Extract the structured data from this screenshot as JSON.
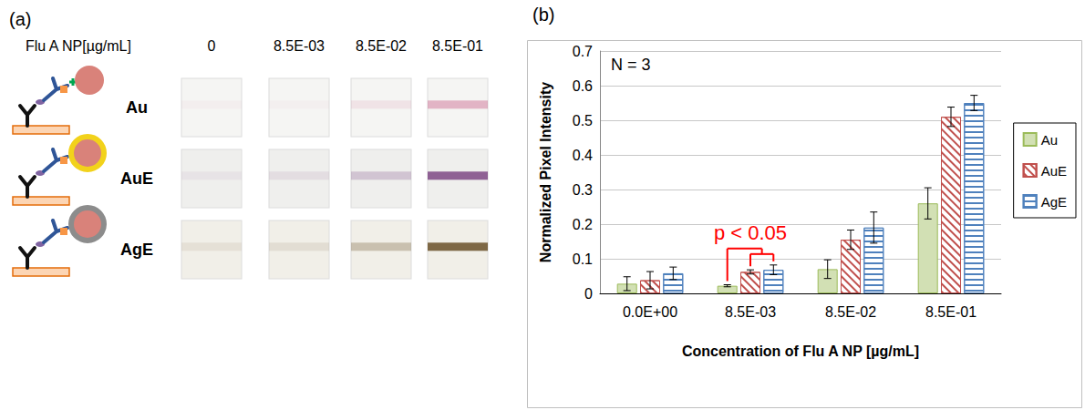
{
  "panel_a": {
    "letter": "(a)",
    "header": "Flu A NP[µg/mL]",
    "columns": [
      "0",
      "8.5E-03",
      "8.5E-02",
      "8.5E-01"
    ],
    "rows": [
      "Au",
      "AuE",
      "AgE"
    ]
  },
  "chart_data": {
    "letter": "(b)",
    "type": "bar",
    "x_label": "Concentration of Flu A NP [µg/mL]",
    "y_label": "Normalized Pixel Intensity",
    "categories": [
      "0.0E+00",
      "8.5E-03",
      "8.5E-02",
      "8.5E-01"
    ],
    "series": [
      {
        "name": "Au",
        "color": "#9bbb59",
        "marker": "solid",
        "values": [
          0.028,
          0.022,
          0.07,
          0.26
        ],
        "errors": [
          0.02,
          0.003,
          0.027,
          0.045
        ]
      },
      {
        "name": "AuE",
        "color": "#c0504d",
        "marker": "hatch",
        "values": [
          0.038,
          0.062,
          0.155,
          0.51
        ],
        "errors": [
          0.025,
          0.006,
          0.028,
          0.028
        ]
      },
      {
        "name": "AgE",
        "color": "#4f81bd",
        "marker": "stripes",
        "values": [
          0.058,
          0.068,
          0.19,
          0.55
        ],
        "errors": [
          0.018,
          0.014,
          0.045,
          0.022
        ]
      }
    ],
    "ylim": [
      0,
      0.7
    ],
    "yticks": [
      0,
      0.1,
      0.2,
      0.3,
      0.4,
      0.5,
      0.6,
      0.7
    ],
    "grid": true,
    "legend": "right",
    "annotations": [
      {
        "text": "N = 3"
      },
      {
        "text": "p < 0.05",
        "category": "8.5E-03",
        "from": "Au",
        "to": [
          "AuE",
          "AgE"
        ],
        "color": "#ff0000"
      }
    ]
  }
}
